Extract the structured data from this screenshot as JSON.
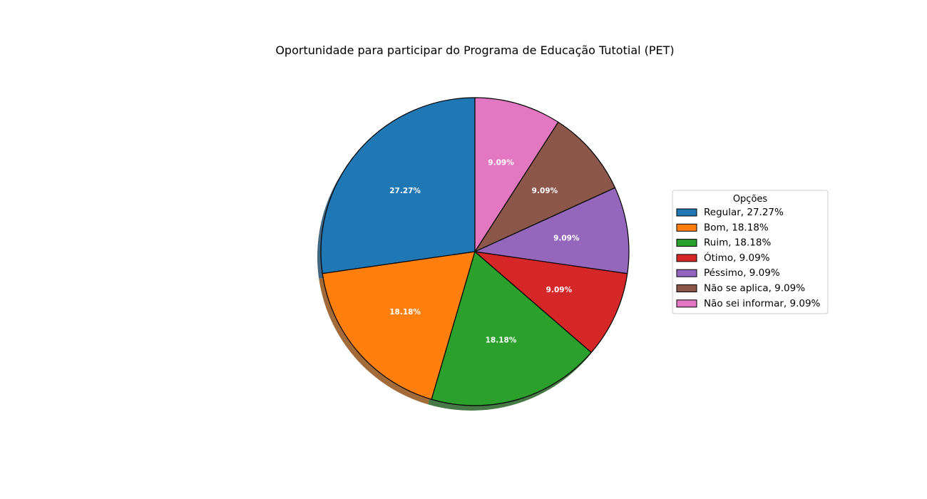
{
  "chart_data": {
    "type": "pie",
    "title": "Oportunidade para participar do Programa de Educação Tutotial (PET)",
    "legend_title": "Opções",
    "legend_position": "right",
    "shadow": true,
    "start_angle_deg": 90,
    "direction": "counterclockwise",
    "slices": [
      {
        "label": "Regular",
        "value": 27.27,
        "pct_label": "27.27%",
        "legend_label": "Regular, 27.27%",
        "color": "#1f77b4"
      },
      {
        "label": "Bom",
        "value": 18.18,
        "pct_label": "18.18%",
        "legend_label": "Bom, 18.18%",
        "color": "#ff7f0e"
      },
      {
        "label": "Ruim",
        "value": 18.18,
        "pct_label": "18.18%",
        "legend_label": "Ruim, 18.18%",
        "color": "#2ca02c"
      },
      {
        "label": "Ótimo",
        "value": 9.09,
        "pct_label": "9.09%",
        "legend_label": "Ótimo, 9.09%",
        "color": "#d62728"
      },
      {
        "label": "Péssimo",
        "value": 9.09,
        "pct_label": "9.09%",
        "legend_label": "Péssimo, 9.09%",
        "color": "#9467bd"
      },
      {
        "label": "Não se aplica",
        "value": 9.09,
        "pct_label": "9.09%",
        "legend_label": "Não se aplica, 9.09%",
        "color": "#8c564b"
      },
      {
        "label": "Não sei informar",
        "value": 9.09,
        "pct_label": "9.09%",
        "legend_label": "Não sei informar, 9.09%",
        "color": "#e377c2"
      }
    ]
  }
}
